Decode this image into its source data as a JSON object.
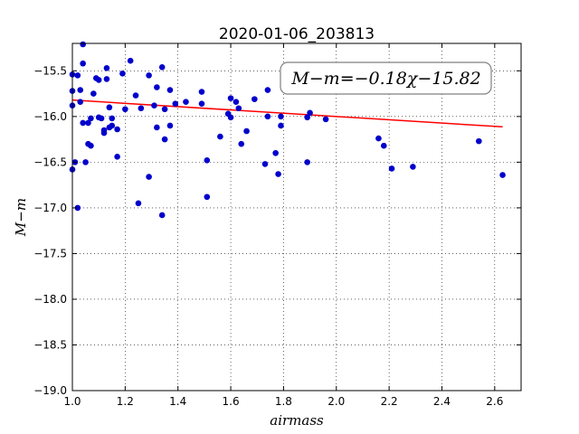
{
  "chart_data": {
    "type": "scatter",
    "title": "2020-01-06_203813",
    "xlabel": "airmass",
    "ylabel": "M−m",
    "xlim": [
      1.0,
      2.7
    ],
    "ylim": [
      -19.0,
      -15.2
    ],
    "y_inverted": true,
    "grid": true,
    "xticks": [
      "1.0",
      "1.2",
      "1.4",
      "1.6",
      "1.8",
      "2.0",
      "2.2",
      "2.4",
      "2.6"
    ],
    "yticks": [
      "−15.5",
      "−16.0",
      "−16.5",
      "−17.0",
      "−17.5",
      "−18.0",
      "−18.5",
      "−19.0"
    ],
    "annotation": "M−m=−0.18χ−15.82",
    "marker_color": "#0000cc",
    "fit_color": "#ff0000",
    "fit_line": {
      "slope": -0.18,
      "intercept": -15.82
    },
    "points": [
      {
        "x": 1.0,
        "y": -15.54
      },
      {
        "x": 1.0,
        "y": -15.72
      },
      {
        "x": 1.0,
        "y": -15.88
      },
      {
        "x": 1.0,
        "y": -16.58
      },
      {
        "x": 1.01,
        "y": -16.5
      },
      {
        "x": 1.02,
        "y": -15.55
      },
      {
        "x": 1.02,
        "y": -17.0
      },
      {
        "x": 1.03,
        "y": -15.71
      },
      {
        "x": 1.03,
        "y": -15.84
      },
      {
        "x": 1.04,
        "y": -15.21
      },
      {
        "x": 1.04,
        "y": -15.42
      },
      {
        "x": 1.04,
        "y": -16.07
      },
      {
        "x": 1.05,
        "y": -16.5
      },
      {
        "x": 1.06,
        "y": -16.07
      },
      {
        "x": 1.06,
        "y": -16.3
      },
      {
        "x": 1.07,
        "y": -16.32
      },
      {
        "x": 1.07,
        "y": -16.02
      },
      {
        "x": 1.08,
        "y": -15.75
      },
      {
        "x": 1.09,
        "y": -15.58
      },
      {
        "x": 1.1,
        "y": -15.6
      },
      {
        "x": 1.1,
        "y": -16.01
      },
      {
        "x": 1.11,
        "y": -16.02
      },
      {
        "x": 1.12,
        "y": -16.15
      },
      {
        "x": 1.12,
        "y": -16.18
      },
      {
        "x": 1.13,
        "y": -15.47
      },
      {
        "x": 1.13,
        "y": -15.59
      },
      {
        "x": 1.14,
        "y": -16.12
      },
      {
        "x": 1.14,
        "y": -15.9
      },
      {
        "x": 1.15,
        "y": -16.1
      },
      {
        "x": 1.15,
        "y": -16.02
      },
      {
        "x": 1.17,
        "y": -16.44
      },
      {
        "x": 1.17,
        "y": -16.14
      },
      {
        "x": 1.19,
        "y": -15.53
      },
      {
        "x": 1.2,
        "y": -15.92
      },
      {
        "x": 1.22,
        "y": -15.39
      },
      {
        "x": 1.24,
        "y": -15.77
      },
      {
        "x": 1.25,
        "y": -16.95
      },
      {
        "x": 1.26,
        "y": -15.91
      },
      {
        "x": 1.29,
        "y": -16.66
      },
      {
        "x": 1.29,
        "y": -15.55
      },
      {
        "x": 1.31,
        "y": -15.88
      },
      {
        "x": 1.32,
        "y": -16.12
      },
      {
        "x": 1.32,
        "y": -15.68
      },
      {
        "x": 1.34,
        "y": -15.46
      },
      {
        "x": 1.34,
        "y": -17.08
      },
      {
        "x": 1.35,
        "y": -16.25
      },
      {
        "x": 1.35,
        "y": -15.92
      },
      {
        "x": 1.37,
        "y": -15.71
      },
      {
        "x": 1.37,
        "y": -16.1
      },
      {
        "x": 1.39,
        "y": -15.86
      },
      {
        "x": 1.43,
        "y": -15.84
      },
      {
        "x": 1.49,
        "y": -15.86
      },
      {
        "x": 1.49,
        "y": -15.73
      },
      {
        "x": 1.51,
        "y": -16.48
      },
      {
        "x": 1.51,
        "y": -16.88
      },
      {
        "x": 1.56,
        "y": -16.22
      },
      {
        "x": 1.59,
        "y": -15.97
      },
      {
        "x": 1.6,
        "y": -15.8
      },
      {
        "x": 1.6,
        "y": -16.01
      },
      {
        "x": 1.62,
        "y": -15.84
      },
      {
        "x": 1.63,
        "y": -15.91
      },
      {
        "x": 1.64,
        "y": -16.3
      },
      {
        "x": 1.66,
        "y": -16.16
      },
      {
        "x": 1.69,
        "y": -15.81
      },
      {
        "x": 1.73,
        "y": -16.52
      },
      {
        "x": 1.74,
        "y": -16.0
      },
      {
        "x": 1.74,
        "y": -15.71
      },
      {
        "x": 1.77,
        "y": -16.4
      },
      {
        "x": 1.78,
        "y": -16.63
      },
      {
        "x": 1.79,
        "y": -16.0
      },
      {
        "x": 1.79,
        "y": -16.1
      },
      {
        "x": 1.89,
        "y": -16.5
      },
      {
        "x": 1.89,
        "y": -16.01
      },
      {
        "x": 1.9,
        "y": -15.96
      },
      {
        "x": 1.96,
        "y": -16.03
      },
      {
        "x": 2.16,
        "y": -16.24
      },
      {
        "x": 2.18,
        "y": -16.32
      },
      {
        "x": 2.21,
        "y": -16.57
      },
      {
        "x": 2.29,
        "y": -16.55
      },
      {
        "x": 2.54,
        "y": -16.27
      },
      {
        "x": 2.63,
        "y": -16.64
      }
    ]
  }
}
